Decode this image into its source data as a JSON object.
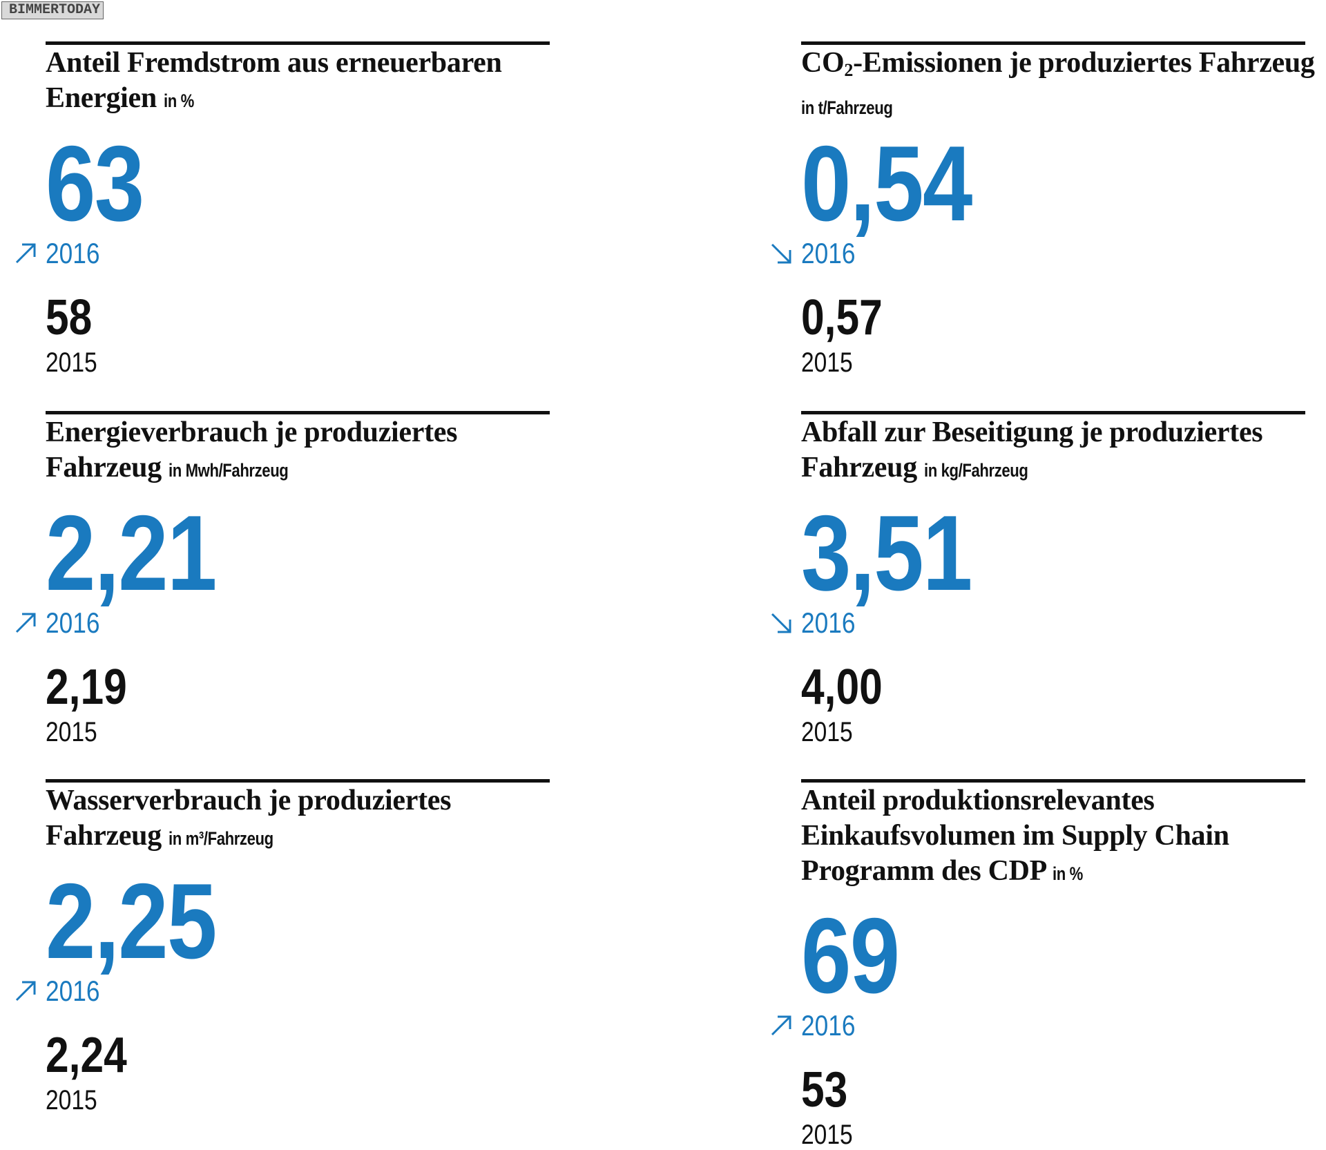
{
  "watermark": "BIMMERTODAY",
  "colors": {
    "accent": "#1a7abf",
    "text": "#111111"
  },
  "metrics": [
    {
      "title": "Anteil Fremdstrom aus erneuerbaren Energien",
      "unit": "in %",
      "value_2016": "63",
      "trend": "up",
      "label_2016": "2016",
      "value_2015": "58",
      "label_2015": "2015"
    },
    {
      "title_pre": "CO",
      "title_sub": "2",
      "title": "-Emissionen je produziertes Fahrzeug",
      "unit": "in t/Fahrzeug",
      "value_2016": "0,54",
      "trend": "down",
      "label_2016": "2016",
      "value_2015": "0,57",
      "label_2015": "2015"
    },
    {
      "title": "Energieverbrauch je produziertes Fahrzeug",
      "unit": "in Mwh/Fahrzeug",
      "value_2016": "2,21",
      "trend": "up",
      "label_2016": "2016",
      "value_2015": "2,19",
      "label_2015": "2015"
    },
    {
      "title": "Abfall zur Beseitigung je produziertes Fahrzeug",
      "unit": "in kg/Fahrzeug",
      "value_2016": "3,51",
      "trend": "down",
      "label_2016": "2016",
      "value_2015": "4,00",
      "label_2015": "2015"
    },
    {
      "title": "Wasserverbrauch je produziertes Fahrzeug",
      "unit": "in m³/Fahrzeug",
      "value_2016": "2,25",
      "trend": "up",
      "label_2016": "2016",
      "value_2015": "2,24",
      "label_2015": "2015"
    },
    {
      "title": "Anteil produktionsrelevantes Einkaufsvolumen im Supply Chain Programm des CDP",
      "unit": "in %",
      "value_2016": "69",
      "trend": "up",
      "label_2016": "2016",
      "value_2015": "53",
      "label_2015": "2015"
    }
  ]
}
